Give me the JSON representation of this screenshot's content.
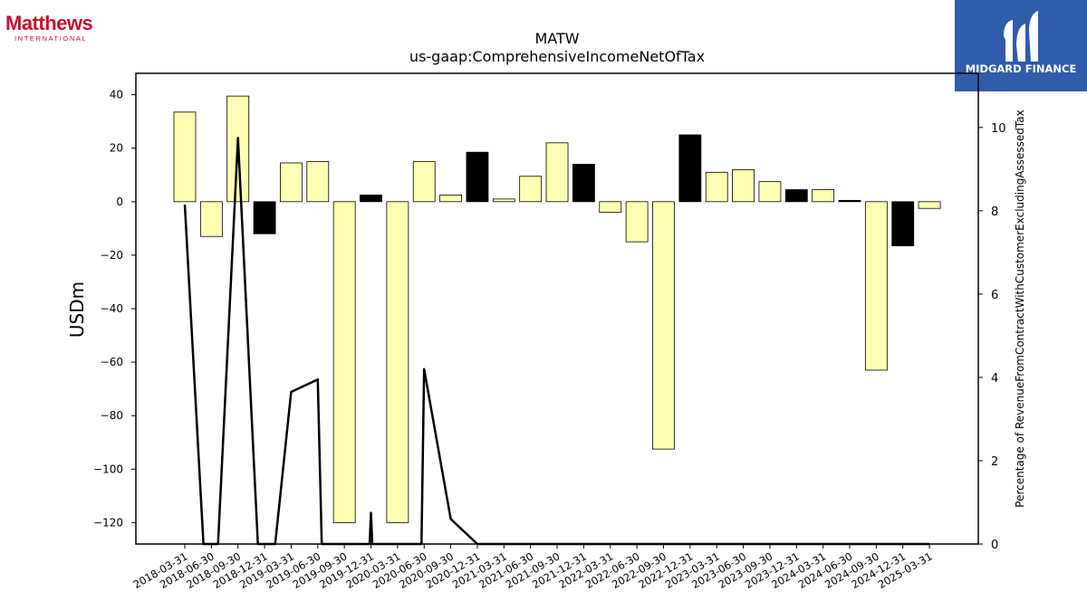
{
  "logos": {
    "left_word": "Matthews",
    "left_sub": "INTERNATIONAL",
    "right_name": "MIDGARD FINANCE",
    "left_color": "#c8102e",
    "right_bg": "#2f5cab"
  },
  "chart_data": {
    "type": "bar",
    "title": "MATW",
    "subtitle": "us-gaap:ComprehensiveIncomeNetOfTax",
    "ylabel": "USDm",
    "y2label": "Percentage of RevenueFromContractWithCustomerExcludingAssessedTax",
    "categories": [
      "2018-03-31",
      "2018-06-30",
      "2018-09-30",
      "2018-12-31",
      "2019-03-31",
      "2019-06-30",
      "2019-09-30",
      "2019-12-31",
      "2020-03-31",
      "2020-06-30",
      "2020-09-30",
      "2020-12-31",
      "2021-03-31",
      "2021-06-30",
      "2021-09-30",
      "2021-12-31",
      "2022-03-31",
      "2022-06-30",
      "2022-09-30",
      "2022-12-31",
      "2023-03-31",
      "2023-06-30",
      "2023-09-30",
      "2023-12-31",
      "2024-03-31",
      "2024-06-30",
      "2024-09-30",
      "2024-12-31",
      "2025-03-31"
    ],
    "series": [
      {
        "values": [
          33.5,
          -13,
          39.5,
          -12,
          14.5,
          15,
          -120,
          2.5,
          -120,
          15,
          2.5,
          18.5,
          1,
          9.5,
          22,
          14,
          -4,
          -15,
          -92.5,
          25,
          11,
          12,
          7.5,
          4.5,
          4.5,
          0.5,
          -63,
          -16.5,
          -2.5
        ],
        "colors": [
          "#ffffb3",
          "#ffffb3",
          "#ffffb3",
          "#000000",
          "#ffffb3",
          "#ffffb3",
          "#ffffb3",
          "#000000",
          "#ffffb3",
          "#ffffb3",
          "#ffffb3",
          "#000000",
          "#ffffb3",
          "#ffffb3",
          "#ffffb3",
          "#000000",
          "#ffffb3",
          "#ffffb3",
          "#ffffb3",
          "#000000",
          "#ffffb3",
          "#ffffb3",
          "#ffffb3",
          "#000000",
          "#ffffb3",
          "#000000",
          "#ffffb3",
          "#000000",
          "#ffffb3"
        ]
      },
      {
        "axis": "right",
        "type": "line",
        "points": [
          {
            "x": 0,
            "y": 8.15
          },
          {
            "x": 0.7,
            "y": 0
          },
          {
            "x": 1.25,
            "y": 0
          },
          {
            "x": 2,
            "y": 9.75
          },
          {
            "x": 2.75,
            "y": 0
          },
          {
            "x": 3.4,
            "y": 0
          },
          {
            "x": 4,
            "y": 3.65
          },
          {
            "x": 5,
            "y": 3.95
          },
          {
            "x": 5.15,
            "y": 0
          },
          {
            "x": 6.95,
            "y": 0
          },
          {
            "x": 7,
            "y": 0.75
          },
          {
            "x": 7.05,
            "y": 0
          },
          {
            "x": 8.9,
            "y": 0
          },
          {
            "x": 9,
            "y": 4.2
          },
          {
            "x": 10,
            "y": 0.6
          },
          {
            "x": 11,
            "y": 0
          },
          {
            "x": 28,
            "y": 0
          }
        ]
      }
    ],
    "ylim": [
      -128,
      48
    ],
    "y2lim": [
      0,
      11.3
    ],
    "yticks": [
      40,
      20,
      0,
      -20,
      -40,
      -60,
      -80,
      -100,
      -120
    ],
    "y2ticks": [
      10,
      8,
      6,
      4,
      2,
      0
    ],
    "grid": false
  }
}
